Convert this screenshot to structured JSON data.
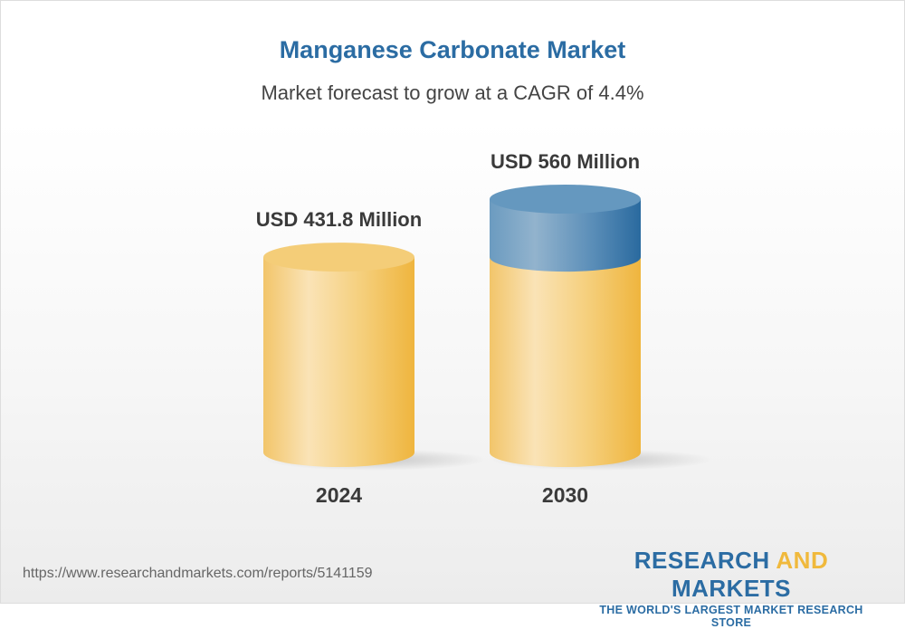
{
  "chart_data": {
    "type": "bar",
    "style": "3d-cylinder",
    "title": "Manganese Carbonate Market",
    "subtitle": "Market forecast to grow at a CAGR of 4.4%",
    "categories": [
      "2024",
      "2030"
    ],
    "values": [
      431.8,
      560
    ],
    "data_labels": [
      "USD 431.8 Million",
      "USD 560 Million"
    ],
    "unit": "USD Million",
    "colors": {
      "base": "#f3c766",
      "growth": "#4f88b5",
      "title": "#2b6ca3"
    }
  },
  "footer": {
    "url": "https://www.researchandmarkets.com/reports/5141159",
    "logo_part1": "RESEARCH ",
    "logo_part2": "AND",
    "logo_part3": " MARKETS",
    "logo_tagline": "THE WORLD'S LARGEST MARKET RESEARCH STORE"
  }
}
